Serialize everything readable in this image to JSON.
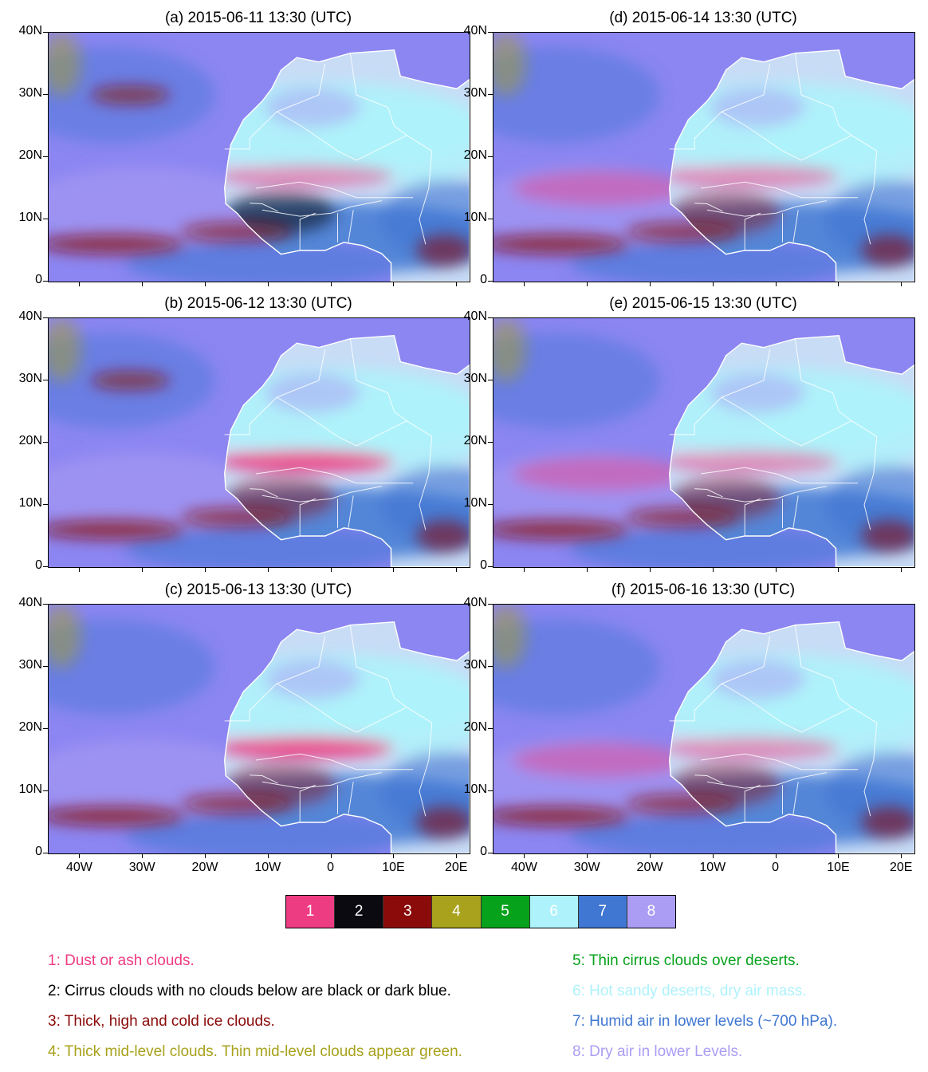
{
  "panels": [
    {
      "id": "a",
      "title": "(a) 2015-06-11 13:30 (UTC)"
    },
    {
      "id": "b",
      "title": "(b) 2015-06-12 13:30 (UTC)"
    },
    {
      "id": "c",
      "title": "(c) 2015-06-13 13:30 (UTC)"
    },
    {
      "id": "d",
      "title": "(d) 2015-06-14 13:30 (UTC)"
    },
    {
      "id": "e",
      "title": "(e) 2015-06-15 13:30 (UTC)"
    },
    {
      "id": "f",
      "title": "(f) 2015-06-16 13:30 (UTC)"
    }
  ],
  "axes": {
    "y_ticks": [
      "40N",
      "30N",
      "20N",
      "10N",
      "0"
    ],
    "x_ticks": [
      "40W",
      "30W",
      "20W",
      "10W",
      "0",
      "10E",
      "20E"
    ],
    "lat_range": [
      0,
      40
    ],
    "lon_range": [
      -45,
      22
    ]
  },
  "colorbar": {
    "cells": [
      {
        "label": "1",
        "color": "#ee3c83"
      },
      {
        "label": "2",
        "color": "#0b0a10"
      },
      {
        "label": "3",
        "color": "#8b0b0a"
      },
      {
        "label": "4",
        "color": "#a8a21c"
      },
      {
        "label": "5",
        "color": "#07a21c"
      },
      {
        "label": "6",
        "color": "#aef2fb"
      },
      {
        "label": "7",
        "color": "#3f77d2"
      },
      {
        "label": "8",
        "color": "#ab9df3"
      }
    ]
  },
  "legend": [
    {
      "text": "1: Dust or ash clouds.",
      "color": "#ee3c83"
    },
    {
      "text": "2: Cirrus clouds with no clouds below are black or dark blue.",
      "color": "#000000"
    },
    {
      "text": "3: Thick, high and cold ice clouds.",
      "color": "#8b0b0a"
    },
    {
      "text": "4: Thick mid-level clouds. Thin mid-level clouds appear green.",
      "color": "#a8a21c"
    },
    {
      "text": "5: Thin cirrus clouds over deserts.",
      "color": "#07a21c"
    },
    {
      "text": "6: Hot sandy deserts, dry air mass.",
      "color": "#aef2fb"
    },
    {
      "text": "7: Humid air in lower levels (~700 hPa).",
      "color": "#3f77d2"
    },
    {
      "text": "8: Dry air in lower Levels.",
      "color": "#ab9df3"
    }
  ]
}
